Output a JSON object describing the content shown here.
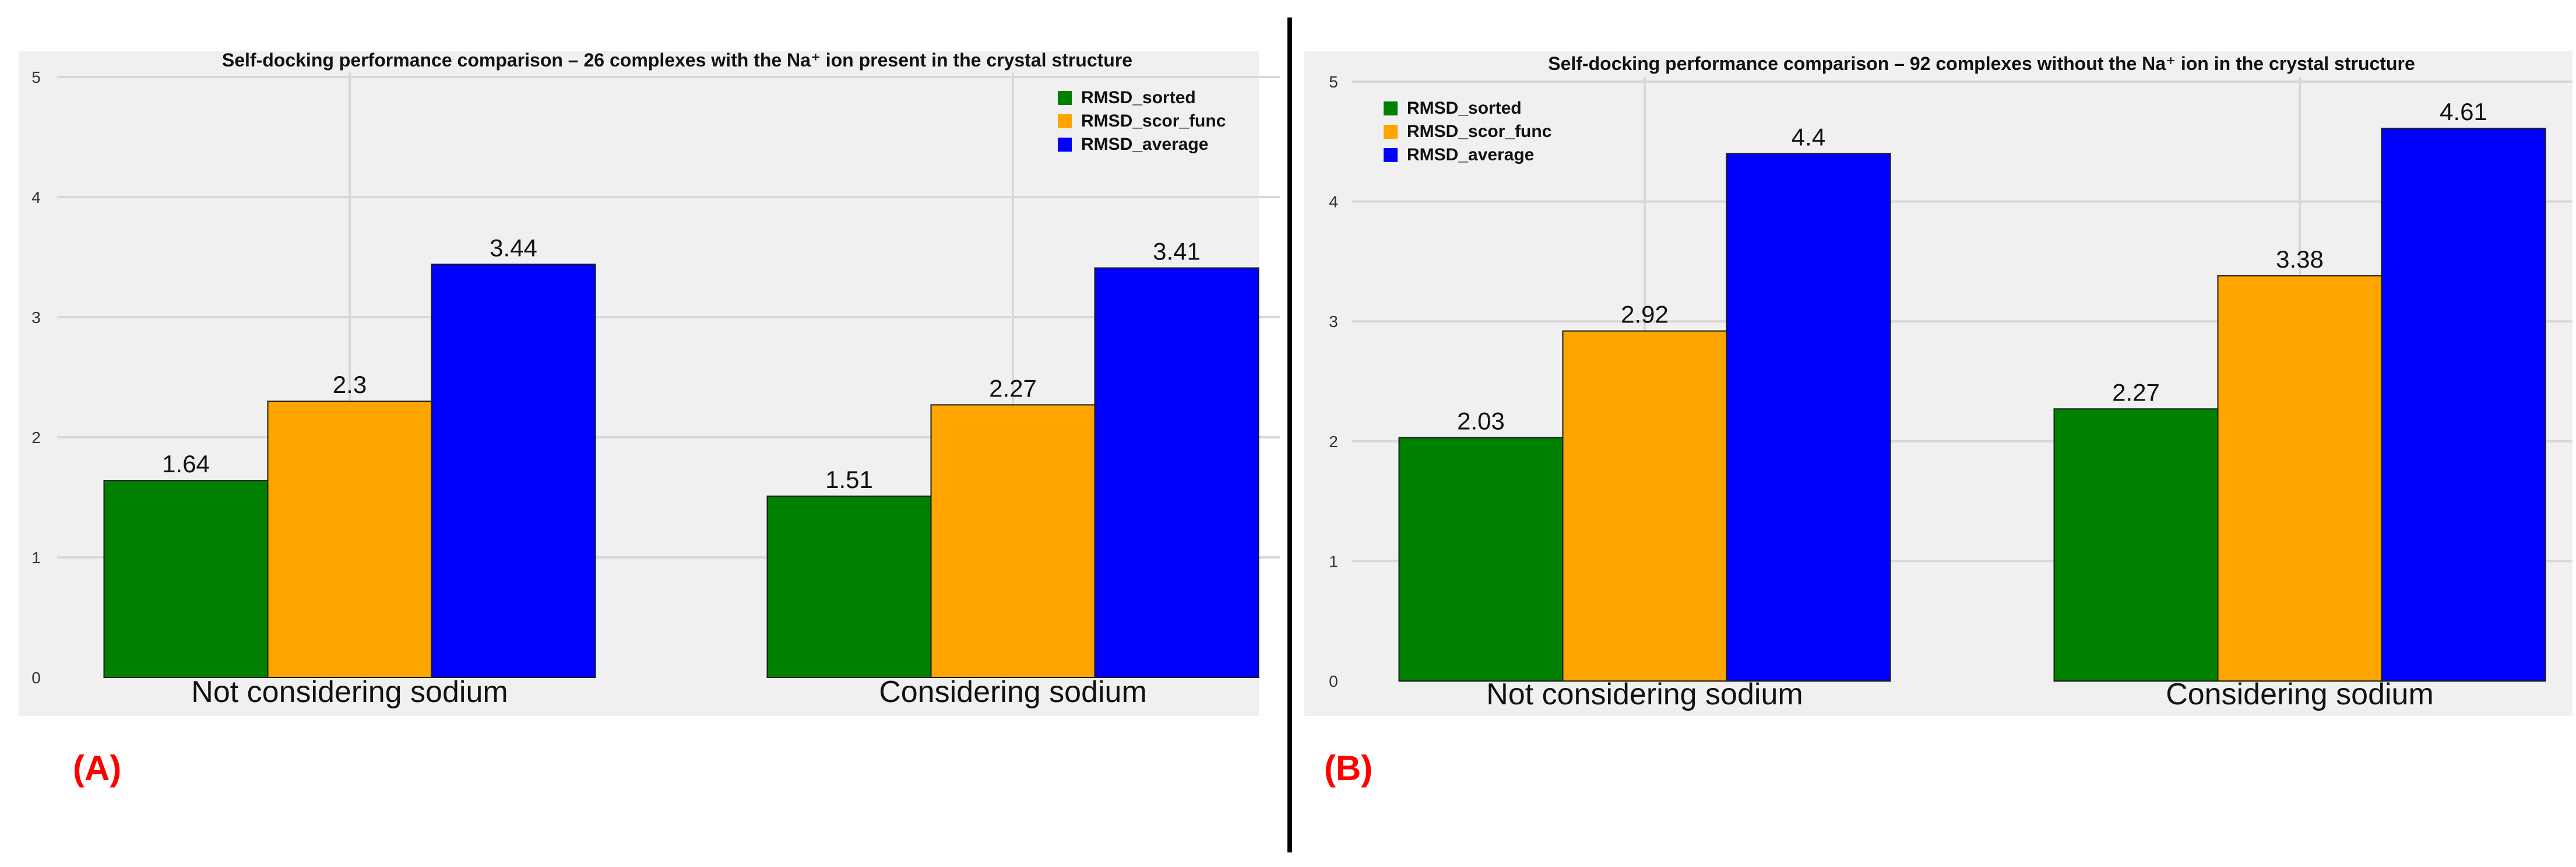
{
  "colors": {
    "sorted": "#008000",
    "scor_func": "#FFA500",
    "average": "#0000FF",
    "panel_bg": "#F0F0F0",
    "grid": "#D8D8D8",
    "panel_label": "#FF0000",
    "divider": "#000000"
  },
  "chart_data": [
    {
      "panel_label": "(A)",
      "type": "bar",
      "title": "Self-docking performance comparison – 26 complexes with the Na⁺ ion present in the crystal structure",
      "categories": [
        "Not considering sodium",
        "Considering sodium"
      ],
      "series": [
        {
          "name": "RMSD_sorted",
          "color_key": "sorted",
          "values": [
            1.64,
            1.51
          ],
          "labels": [
            "1.64",
            "1.51"
          ]
        },
        {
          "name": "RMSD_scor_func",
          "color_key": "scor_func",
          "values": [
            2.3,
            2.27
          ],
          "labels": [
            "2.3",
            "2.27"
          ]
        },
        {
          "name": "RMSD_average",
          "color_key": "average",
          "values": [
            3.44,
            3.41
          ],
          "labels": [
            "3.44",
            "3.41"
          ]
        }
      ],
      "ylim": [
        0,
        5
      ],
      "yticks": [
        "0",
        "1",
        "2",
        "3",
        "4",
        "5"
      ],
      "xlabel": "",
      "ylabel": "",
      "grid": true,
      "legend_position": "top-right"
    },
    {
      "panel_label": "(B)",
      "type": "bar",
      "title": "Self-docking performance comparison – 92 complexes without the Na⁺ ion in the crystal structure",
      "categories": [
        "Not considering sodium",
        "Considering sodium"
      ],
      "series": [
        {
          "name": "RMSD_sorted",
          "color_key": "sorted",
          "values": [
            2.03,
            2.27
          ],
          "labels": [
            "2.03",
            "2.27"
          ]
        },
        {
          "name": "RMSD_scor_func",
          "color_key": "scor_func",
          "values": [
            2.92,
            3.38
          ],
          "labels": [
            "2.92",
            "3.38"
          ]
        },
        {
          "name": "RMSD_average",
          "color_key": "average",
          "values": [
            4.4,
            4.61
          ],
          "labels": [
            "4.4",
            "4.61"
          ]
        }
      ],
      "ylim": [
        0,
        5
      ],
      "yticks": [
        "0",
        "1",
        "2",
        "3",
        "4",
        "5"
      ],
      "xlabel": "",
      "ylabel": "",
      "grid": true,
      "legend_position": "top-left"
    }
  ]
}
